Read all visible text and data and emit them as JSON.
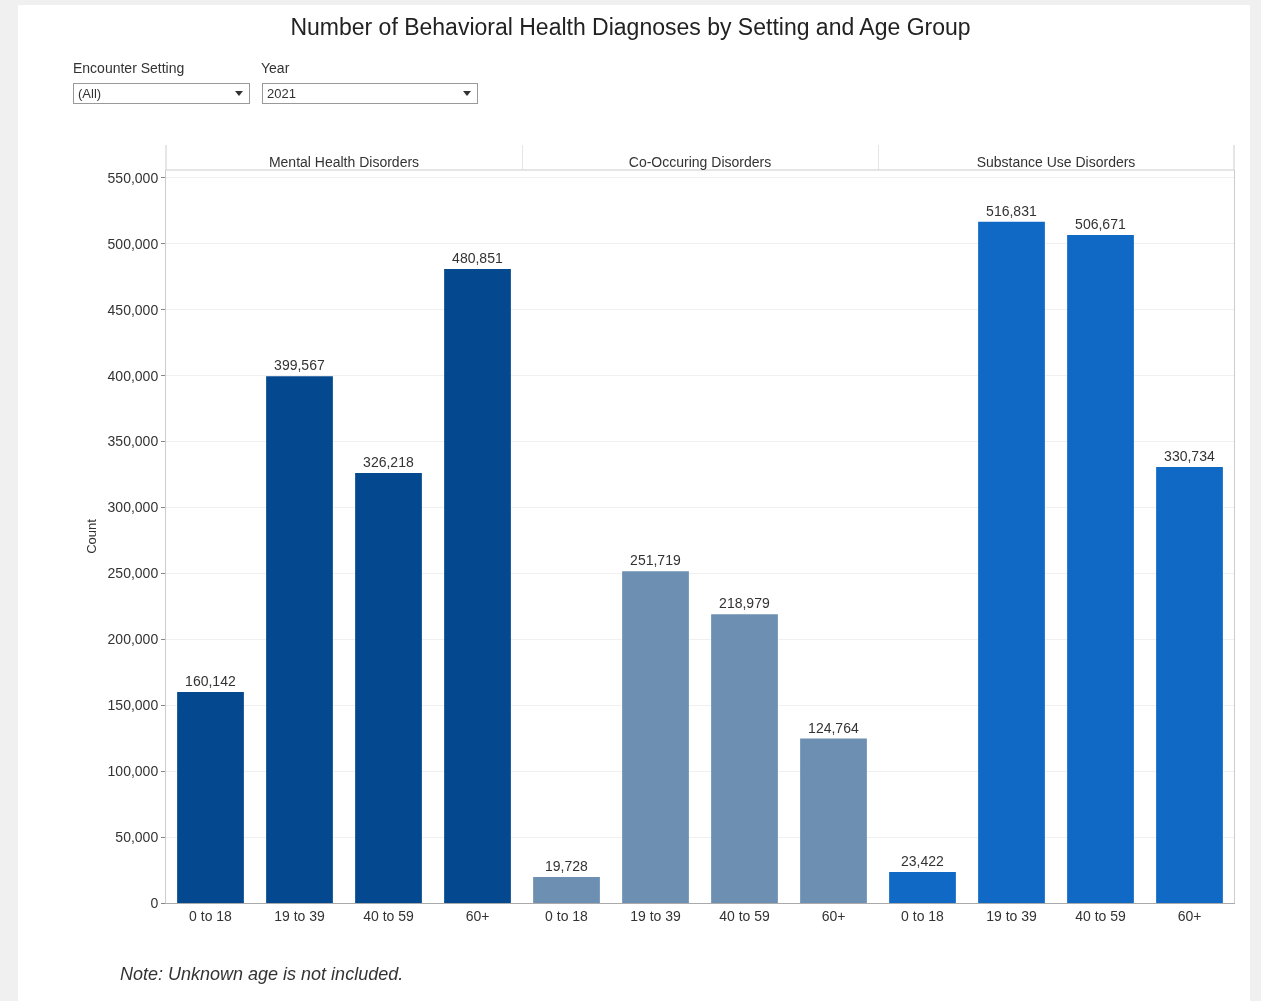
{
  "chart_data": [
    {
      "type": "other",
      "title": "Number of Behavioral Health Diagnoses by Setting and Age Group",
      "annotations": [
        "Encounter Setting",
        "(All)",
        "Year",
        "2021",
        "Note: Unknown age is not included."
      ]
    },
    {
      "type": "bar",
      "title": "Mental Health Disorders",
      "ylabel": "Count",
      "categories": [
        "0 to 18",
        "19 to 39",
        "40 to 59",
        "60+"
      ],
      "values": [
        160142,
        399567,
        326218,
        480851
      ],
      "color": "#04498f",
      "value_labels": [
        "160,142",
        "399,567",
        "326,218",
        "480,851"
      ],
      "ylim": [
        0,
        556000
      ],
      "yticks": [
        0,
        {
          "value": 50000,
          "label": "50,000"
        },
        {
          "value": 100000,
          "label": "100,000"
        },
        {
          "value": 150000,
          "label": "150,000"
        },
        {
          "value": 200000,
          "label": "200,000"
        },
        {
          "value": 250000,
          "label": "250,000"
        },
        {
          "value": 300000,
          "label": "300,000"
        },
        {
          "value": 350000,
          "label": "350,000"
        },
        {
          "value": 400000,
          "label": "400,000"
        },
        {
          "value": 450000,
          "label": "450,000"
        },
        {
          "value": 500000,
          "label": "500,000"
        },
        {
          "value": 550000,
          "label": "550,000"
        }
      ],
      "grid": "y",
      "legend": false
    },
    {
      "type": "bar",
      "title": "Co-Occuring Disorders",
      "categories": [
        "0 to 18",
        "19 to 39",
        "40 to 59",
        "60+"
      ],
      "values": [
        19728,
        251719,
        218979,
        124764
      ],
      "color": "#6d8fb2",
      "value_labels": [
        "19,728",
        "251,719",
        "218,979",
        "124,764"
      ],
      "ylim": [
        0,
        556000
      ],
      "yticks": [
        {
          "value": 0,
          "label": null
        },
        {
          "value": 50000,
          "label": null
        },
        {
          "value": 100000,
          "label": null
        },
        {
          "value": 150000,
          "label": null
        },
        {
          "value": 200000,
          "label": null
        },
        {
          "value": 250000,
          "label": null
        },
        {
          "value": 300000,
          "label": null
        },
        {
          "value": 350000,
          "label": null
        },
        {
          "value": 400000,
          "label": null
        },
        {
          "value": 450000,
          "label": null
        },
        {
          "value": 500000,
          "label": null
        },
        {
          "value": 550000,
          "label": null
        }
      ],
      "grid": "y",
      "tick_labels": "x",
      "legend": false
    },
    {
      "type": "bar",
      "title": "Substance Use Disorders",
      "categories": [
        "0 to 18",
        "19 to 39",
        "40 to 59",
        "60+"
      ],
      "values": [
        23422,
        516831,
        506671,
        330734
      ],
      "color": "#1169c6",
      "value_labels": [
        "23,422",
        "516,831",
        "506,671",
        "330,734"
      ],
      "ylim": [
        0,
        556000
      ],
      "yticks": [
        {
          "value": 0,
          "label": null
        },
        {
          "value": 50000,
          "label": null
        },
        {
          "value": 100000,
          "label": null
        },
        {
          "value": 150000,
          "label": null
        },
        {
          "value": 200000,
          "label": null
        },
        {
          "value": 250000,
          "label": null
        },
        {
          "value": 300000,
          "label": null
        },
        {
          "value": 350000,
          "label": null
        },
        {
          "value": 400000,
          "label": null
        },
        {
          "value": 450000,
          "label": null
        },
        {
          "value": 500000,
          "label": null
        },
        {
          "value": 550000,
          "label": null
        }
      ],
      "grid": "y",
      "tick_labels": "x",
      "legend": false
    }
  ]
}
